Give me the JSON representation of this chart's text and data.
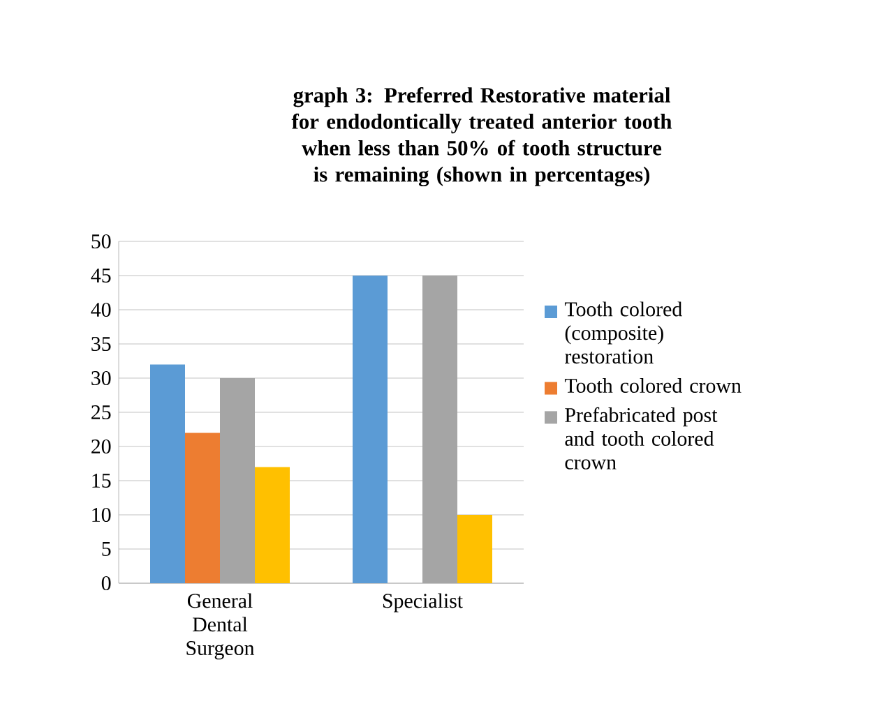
{
  "chart_data": {
    "type": "bar",
    "title": "graph 3: Preferred  Restorative material for endodontically treated anterior tooth when less than 50% of tooth structure is remaining (shown in percentages)",
    "categories": [
      "General Dental Surgeon",
      "Specialist"
    ],
    "series": [
      {
        "name": "Tooth colored (composite) restoration",
        "color": "#5b9bd5",
        "values": [
          32,
          45
        ]
      },
      {
        "name": "Tooth colored crown",
        "color": "#ed7d31",
        "values": [
          22,
          0
        ]
      },
      {
        "name": "Prefabricated post and tooth colored crown",
        "color": "#a5a5a5",
        "values": [
          30,
          45
        ]
      },
      {
        "color": "#ffc000",
        "values": [
          17,
          10
        ]
      }
    ],
    "ylim": [
      0,
      50
    ],
    "yticks": [
      0,
      5,
      10,
      15,
      20,
      25,
      30,
      35,
      40,
      45,
      50
    ],
    "grid": "y",
    "legend": "right"
  }
}
